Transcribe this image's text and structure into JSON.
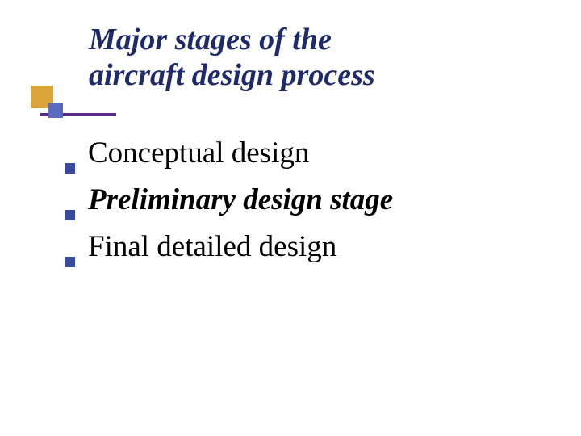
{
  "slide": {
    "title_line1": "Major stages  of the",
    "title_line2": "aircraft design process",
    "title_color": "#1e2a6a",
    "title_fontsize": 38,
    "title_fontstyle": "italic bold",
    "accent": {
      "square1_color": "#d9a43a",
      "square2_color": "#5a6bbf",
      "bar_color": "#5a2a8a"
    },
    "bullets": [
      {
        "text": "Conceptual design",
        "emphasis": false
      },
      {
        "text": "Preliminary design stage",
        "emphasis": true
      },
      {
        "text": "Final detailed design",
        "emphasis": false
      }
    ],
    "bullet_marker_color": "#3a4a9a",
    "bullet_fontsize": 37,
    "background_color": "#ffffff"
  }
}
